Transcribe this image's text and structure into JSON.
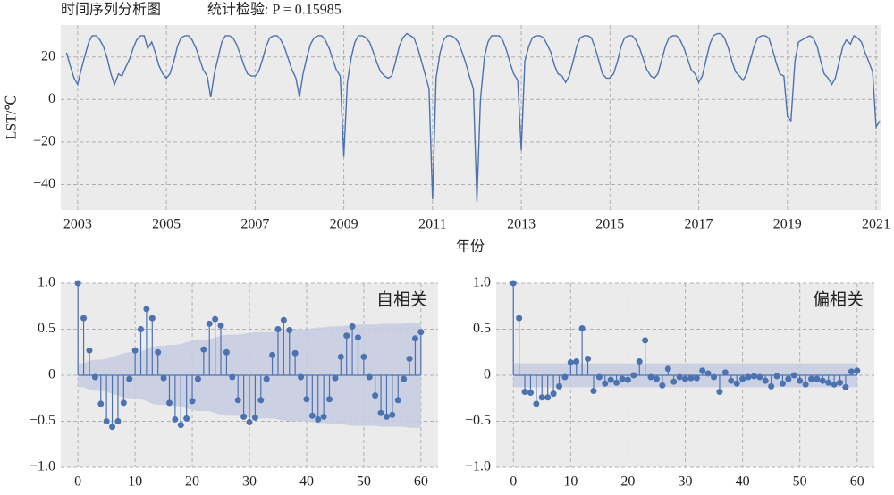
{
  "chart_data": [
    {
      "type": "line",
      "title": "时间序列分析图",
      "subtitle": "统计检验: P = 0.15985",
      "xlabel": "年份",
      "ylabel": "LST/℃",
      "color": "#4c72b0",
      "grid": true,
      "xlim": [
        2002.62,
        2021.1
      ],
      "ylim": [
        -52,
        35
      ],
      "xticks": [
        2003,
        2005,
        2007,
        2009,
        2011,
        2013,
        2015,
        2017,
        2019,
        2021
      ],
      "yticks": [
        {
          "value": -40,
          "label": "−40"
        },
        {
          "value": -20,
          "label": "−20"
        },
        0,
        20
      ],
      "x": [
        2002.75,
        2002.83,
        2002.92,
        2003,
        2003.08,
        2003.17,
        2003.25,
        2003.33,
        2003.42,
        2003.5,
        2003.58,
        2003.67,
        2003.75,
        2003.83,
        2003.92,
        2004,
        2004.08,
        2004.17,
        2004.25,
        2004.33,
        2004.42,
        2004.5,
        2004.58,
        2004.67,
        2004.75,
        2004.83,
        2004.92,
        2005,
        2005.08,
        2005.17,
        2005.25,
        2005.33,
        2005.42,
        2005.5,
        2005.58,
        2005.67,
        2005.75,
        2005.83,
        2005.92,
        2006,
        2006.08,
        2006.17,
        2006.25,
        2006.33,
        2006.42,
        2006.5,
        2006.58,
        2006.67,
        2006.75,
        2006.83,
        2006.92,
        2007,
        2007.08,
        2007.17,
        2007.25,
        2007.33,
        2007.42,
        2007.5,
        2007.58,
        2007.67,
        2007.75,
        2007.83,
        2007.92,
        2008,
        2008.08,
        2008.17,
        2008.25,
        2008.33,
        2008.42,
        2008.5,
        2008.58,
        2008.67,
        2008.75,
        2008.83,
        2008.92,
        2009,
        2009.08,
        2009.17,
        2009.25,
        2009.33,
        2009.42,
        2009.5,
        2009.58,
        2009.67,
        2009.75,
        2009.83,
        2009.92,
        2010,
        2010.08,
        2010.17,
        2010.25,
        2010.33,
        2010.42,
        2010.5,
        2010.58,
        2010.67,
        2010.75,
        2010.83,
        2010.92,
        2011,
        2011.08,
        2011.17,
        2011.25,
        2011.33,
        2011.42,
        2011.5,
        2011.58,
        2011.67,
        2011.75,
        2011.83,
        2011.92,
        2012,
        2012.08,
        2012.17,
        2012.25,
        2012.33,
        2012.42,
        2012.5,
        2012.58,
        2012.67,
        2012.75,
        2012.83,
        2012.92,
        2013,
        2013.08,
        2013.17,
        2013.25,
        2013.33,
        2013.42,
        2013.5,
        2013.58,
        2013.67,
        2013.75,
        2013.83,
        2013.92,
        2014,
        2014.08,
        2014.17,
        2014.25,
        2014.33,
        2014.42,
        2014.5,
        2014.58,
        2014.67,
        2014.75,
        2014.83,
        2014.92,
        2015,
        2015.08,
        2015.17,
        2015.25,
        2015.33,
        2015.42,
        2015.5,
        2015.58,
        2015.67,
        2015.75,
        2015.83,
        2015.92,
        2016,
        2016.08,
        2016.17,
        2016.25,
        2016.33,
        2016.42,
        2016.5,
        2016.58,
        2016.67,
        2016.75,
        2016.83,
        2016.92,
        2017,
        2017.08,
        2017.17,
        2017.25,
        2017.33,
        2017.42,
        2017.5,
        2017.58,
        2017.67,
        2017.75,
        2017.83,
        2017.92,
        2018,
        2018.08,
        2018.17,
        2018.25,
        2018.33,
        2018.42,
        2018.5,
        2018.58,
        2018.67,
        2018.75,
        2018.83,
        2018.92,
        2019,
        2019.08,
        2019.17,
        2019.25,
        2019.33,
        2019.42,
        2019.5,
        2019.58,
        2019.67,
        2019.75,
        2019.83,
        2019.92,
        2020,
        2020.08,
        2020.17,
        2020.25,
        2020.33,
        2020.42,
        2020.5,
        2020.58,
        2020.67,
        2020.75,
        2020.83,
        2020.92,
        2021,
        2021.08
      ],
      "values": [
        22,
        16,
        10,
        7,
        14,
        21,
        27,
        30,
        30,
        28,
        25,
        19,
        12,
        7,
        12,
        11,
        15,
        19,
        24,
        28,
        30,
        30,
        24,
        27,
        22,
        16,
        12,
        10,
        12,
        18,
        25,
        29,
        30,
        30,
        28,
        24,
        19,
        14,
        11,
        1,
        12,
        20,
        27,
        30,
        30,
        29,
        26,
        21,
        16,
        12,
        11,
        11,
        13,
        19,
        25,
        29,
        30,
        30,
        28,
        24,
        19,
        14,
        10,
        1,
        12,
        20,
        26,
        29,
        30,
        30,
        28,
        24,
        19,
        14,
        11,
        -27,
        8,
        20,
        27,
        30,
        30,
        29,
        27,
        22,
        17,
        13,
        11,
        10,
        11,
        18,
        25,
        29,
        31,
        30,
        29,
        24,
        18,
        12,
        5,
        -47,
        10,
        22,
        28,
        30,
        30,
        29,
        27,
        22,
        17,
        11,
        5,
        -48,
        0,
        20,
        27,
        30,
        30,
        30,
        28,
        23,
        17,
        12,
        9,
        -24,
        18,
        25,
        29,
        30,
        30,
        29,
        26,
        22,
        16,
        12,
        11,
        8,
        11,
        18,
        25,
        29,
        30,
        30,
        29,
        24,
        18,
        12,
        10,
        10,
        12,
        18,
        25,
        29,
        30,
        30,
        28,
        24,
        19,
        14,
        11,
        10,
        12,
        19,
        25,
        29,
        30,
        30,
        28,
        24,
        19,
        14,
        12,
        8,
        11,
        19,
        26,
        30,
        31,
        31,
        29,
        24,
        18,
        13,
        11,
        9,
        12,
        19,
        25,
        29,
        30,
        30,
        29,
        23,
        17,
        12,
        11,
        -8,
        -10,
        18,
        27,
        28,
        29,
        30,
        29,
        25,
        18,
        12,
        10,
        7,
        10,
        18,
        25,
        28,
        26,
        30,
        29,
        27,
        22,
        18,
        13,
        -13,
        -10
      ]
    },
    {
      "type": "stem",
      "annotation": "自相关",
      "color": "#4c72b0",
      "band_color": "#c5cde0",
      "grid": true,
      "xlim": [
        -3,
        63
      ],
      "ylim": [
        -1,
        1
      ],
      "xticks": [
        0,
        10,
        20,
        30,
        40,
        50,
        60
      ],
      "yticks": [
        {
          "value": -1,
          "label": "−1.0"
        },
        {
          "value": -0.5,
          "label": "−0.5"
        },
        0,
        0.5,
        {
          "value": 1,
          "label": "1.0"
        }
      ],
      "x": [
        0,
        1,
        2,
        3,
        4,
        5,
        6,
        7,
        8,
        9,
        10,
        11,
        12,
        13,
        14,
        15,
        16,
        17,
        18,
        19,
        20,
        21,
        22,
        23,
        24,
        25,
        26,
        27,
        28,
        29,
        30,
        31,
        32,
        33,
        34,
        35,
        36,
        37,
        38,
        39,
        40,
        41,
        42,
        43,
        44,
        45,
        46,
        47,
        48,
        49,
        50,
        51,
        52,
        53,
        54,
        55,
        56,
        57,
        58,
        59,
        60
      ],
      "values": [
        1,
        0.62,
        0.27,
        -0.02,
        -0.31,
        -0.5,
        -0.56,
        -0.5,
        -0.3,
        -0.04,
        0.27,
        0.5,
        0.72,
        0.62,
        0.25,
        -0.03,
        -0.3,
        -0.48,
        -0.54,
        -0.47,
        -0.28,
        -0.04,
        0.28,
        0.56,
        0.61,
        0.54,
        0.25,
        -0.02,
        -0.27,
        -0.45,
        -0.51,
        -0.46,
        -0.27,
        -0.04,
        0.22,
        0.5,
        0.6,
        0.49,
        0.24,
        -0.02,
        -0.26,
        -0.44,
        -0.48,
        -0.45,
        -0.26,
        -0.03,
        0.2,
        0.43,
        0.53,
        0.41,
        0.2,
        -0.02,
        -0.22,
        -0.41,
        -0.45,
        -0.43,
        -0.27,
        -0.04,
        0.18,
        0.4,
        0.47
      ],
      "confint": [
        0.13,
        0.13,
        0.16,
        0.17,
        0.17,
        0.18,
        0.2,
        0.22,
        0.24,
        0.25,
        0.25,
        0.26,
        0.28,
        0.31,
        0.32,
        0.32,
        0.33,
        0.33,
        0.34,
        0.36,
        0.38,
        0.39,
        0.39,
        0.39,
        0.41,
        0.43,
        0.44,
        0.44,
        0.44,
        0.45,
        0.46,
        0.47,
        0.47,
        0.47,
        0.47,
        0.48,
        0.49,
        0.5,
        0.5,
        0.5,
        0.5,
        0.51,
        0.52,
        0.52,
        0.53,
        0.53,
        0.53,
        0.54,
        0.55,
        0.55,
        0.55,
        0.55,
        0.55,
        0.56,
        0.56,
        0.56,
        0.56,
        0.56,
        0.57,
        0.57,
        0.57
      ]
    },
    {
      "type": "stem",
      "annotation": "偏相关",
      "color": "#4c72b0",
      "band_color": "#c5cde0",
      "grid": true,
      "xlim": [
        -3,
        63
      ],
      "ylim": [
        -1,
        1
      ],
      "xticks": [
        0,
        10,
        20,
        30,
        40,
        50,
        60
      ],
      "yticks": [
        {
          "value": -1,
          "label": "−1.0"
        },
        {
          "value": -0.5,
          "label": "−0.5"
        },
        0,
        0.5,
        {
          "value": 1,
          "label": "1.0"
        }
      ],
      "x": [
        0,
        1,
        2,
        3,
        4,
        5,
        6,
        7,
        8,
        9,
        10,
        11,
        12,
        13,
        14,
        15,
        16,
        17,
        18,
        19,
        20,
        21,
        22,
        23,
        24,
        25,
        26,
        27,
        28,
        29,
        30,
        31,
        32,
        33,
        34,
        35,
        36,
        37,
        38,
        39,
        40,
        41,
        42,
        43,
        44,
        45,
        46,
        47,
        48,
        49,
        50,
        51,
        52,
        53,
        54,
        55,
        56,
        57,
        58,
        59,
        60
      ],
      "values": [
        1,
        0.62,
        -0.18,
        -0.19,
        -0.31,
        -0.24,
        -0.24,
        -0.2,
        -0.12,
        -0.02,
        0.14,
        0.15,
        0.51,
        0.18,
        -0.17,
        -0.02,
        -0.09,
        -0.05,
        -0.08,
        -0.04,
        -0.05,
        0.0,
        0.15,
        0.38,
        -0.02,
        -0.04,
        -0.11,
        0.07,
        -0.07,
        -0.02,
        -0.04,
        -0.03,
        -0.03,
        0.05,
        0.02,
        -0.02,
        -0.18,
        0.03,
        -0.06,
        -0.09,
        -0.04,
        -0.02,
        -0.01,
        -0.02,
        -0.06,
        -0.12,
        -0.01,
        -0.09,
        -0.04,
        0.0,
        -0.06,
        -0.1,
        -0.04,
        -0.04,
        -0.06,
        -0.08,
        -0.1,
        -0.08,
        -0.13,
        0.04,
        0.05
      ],
      "confint": 0.13
    }
  ]
}
